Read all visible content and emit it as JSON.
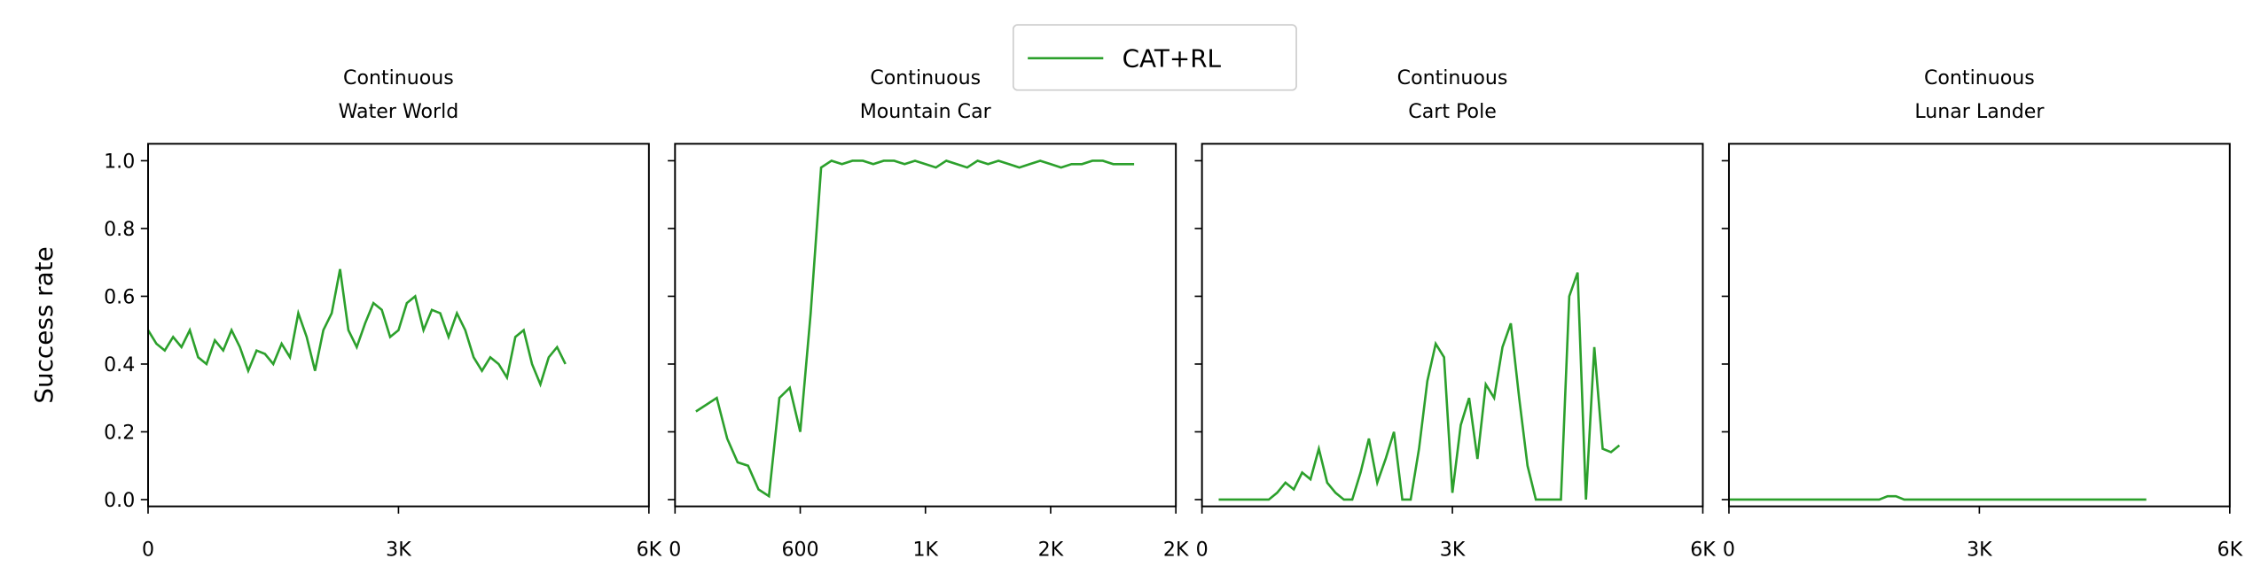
{
  "chart_data": [
    {
      "type": "line",
      "title": [
        "Continuous",
        "Water World"
      ],
      "ylabel": "Success rate",
      "x": [
        0,
        100,
        200,
        300,
        400,
        500,
        600,
        700,
        800,
        900,
        1000,
        1100,
        1200,
        1300,
        1400,
        1500,
        1600,
        1700,
        1800,
        1900,
        2000,
        2100,
        2200,
        2300,
        2400,
        2500,
        2600,
        2700,
        2800,
        2900,
        3000,
        3100,
        3200,
        3300,
        3400,
        3500,
        3600,
        3700,
        3800,
        3900,
        4000,
        4100,
        4200,
        4300,
        4400,
        4500,
        4600,
        4700,
        4800,
        4900,
        5000
      ],
      "series": [
        {
          "name": "CAT+RL",
          "color": "#2ca02c",
          "values": [
            0.5,
            0.46,
            0.44,
            0.48,
            0.45,
            0.5,
            0.42,
            0.4,
            0.47,
            0.44,
            0.5,
            0.45,
            0.38,
            0.44,
            0.43,
            0.4,
            0.46,
            0.42,
            0.55,
            0.48,
            0.38,
            0.5,
            0.55,
            0.68,
            0.5,
            0.45,
            0.52,
            0.58,
            0.56,
            0.48,
            0.5,
            0.58,
            0.6,
            0.5,
            0.56,
            0.55,
            0.48,
            0.55,
            0.5,
            0.42,
            0.38,
            0.42,
            0.4,
            0.36,
            0.48,
            0.5,
            0.4,
            0.34,
            0.42,
            0.45,
            0.4
          ]
        }
      ],
      "xlim": [
        0,
        6000
      ],
      "xticks": [
        0,
        {
          "value": 3000,
          "label": "3K"
        },
        {
          "value": 6000,
          "label": "6K"
        }
      ],
      "ylim": [
        -0.02,
        1.05
      ],
      "yticks": [
        {
          "value": 0,
          "label": "0.0"
        },
        {
          "value": 0.2,
          "label": "0.2"
        },
        {
          "value": 0.4,
          "label": "0.4"
        },
        {
          "value": 0.6,
          "label": "0.6"
        },
        {
          "value": 0.8,
          "label": "0.8"
        },
        {
          "value": 1,
          "label": "1.0"
        }
      ]
    },
    {
      "type": "line",
      "title": [
        "Continuous",
        "Mountain Car"
      ],
      "x": [
        100,
        150,
        200,
        250,
        300,
        350,
        400,
        450,
        500,
        550,
        600,
        650,
        700,
        750,
        800,
        850,
        900,
        950,
        1000,
        1050,
        1100,
        1150,
        1200,
        1250,
        1300,
        1350,
        1400,
        1450,
        1500,
        1550,
        1600,
        1650,
        1700,
        1750,
        1800,
        1850,
        1900,
        1950,
        2000,
        2050,
        2100,
        2150,
        2200
      ],
      "series": [
        {
          "color": "#2ca02c",
          "values": [
            0.26,
            0.28,
            0.3,
            0.18,
            0.11,
            0.1,
            0.03,
            0.01,
            0.3,
            0.33,
            0.2,
            0.55,
            0.98,
            1.0,
            0.99,
            1.0,
            1.0,
            0.99,
            1.0,
            1.0,
            0.99,
            1.0,
            0.99,
            0.98,
            1.0,
            0.99,
            0.98,
            1.0,
            0.99,
            1.0,
            0.99,
            0.98,
            0.99,
            1.0,
            0.99,
            0.98,
            0.99,
            0.99,
            1.0,
            1.0,
            0.99,
            0.99,
            0.99
          ]
        }
      ],
      "xlim": [
        0,
        2400
      ],
      "xticks": [
        0,
        600,
        {
          "value": 1200,
          "label": "1K"
        },
        {
          "value": 1800,
          "label": "2K"
        },
        {
          "value": 2400,
          "label": "2K"
        }
      ]
    },
    {
      "type": "line",
      "title": [
        "Continuous",
        "Cart Pole"
      ],
      "x": [
        200,
        300,
        400,
        500,
        600,
        700,
        800,
        900,
        1000,
        1100,
        1200,
        1300,
        1400,
        1500,
        1600,
        1700,
        1800,
        1900,
        2000,
        2100,
        2200,
        2300,
        2400,
        2500,
        2600,
        2700,
        2800,
        2900,
        3000,
        3100,
        3200,
        3300,
        3400,
        3500,
        3600,
        3700,
        3800,
        3900,
        4000,
        4100,
        4200,
        4300,
        4400,
        4500,
        4600,
        4700,
        4800,
        4900,
        5000
      ],
      "series": [
        {
          "color": "#2ca02c",
          "values": [
            0,
            0,
            0,
            0,
            0,
            0,
            0,
            0.02,
            0.05,
            0.03,
            0.08,
            0.06,
            0.15,
            0.05,
            0.02,
            0,
            0,
            0.08,
            0.18,
            0.05,
            0.12,
            0.2,
            0,
            0,
            0.15,
            0.35,
            0.46,
            0.42,
            0.02,
            0.22,
            0.3,
            0.12,
            0.34,
            0.3,
            0.45,
            0.52,
            0.3,
            0.1,
            0,
            0,
            0,
            0,
            0.6,
            0.67,
            0,
            0.45,
            0.15,
            0.14,
            0.16
          ]
        }
      ],
      "xlim": [
        0,
        6000
      ],
      "xticks": [
        0,
        {
          "value": 3000,
          "label": "3K"
        },
        {
          "value": 6000,
          "label": "6K"
        }
      ]
    },
    {
      "type": "line",
      "title": [
        "Continuous",
        "Lunar Lander"
      ],
      "x": [
        0,
        1800,
        1900,
        2000,
        2100,
        5000
      ],
      "series": [
        {
          "color": "#2ca02c",
          "values": [
            0,
            0,
            0.01,
            0.01,
            0,
            0
          ]
        }
      ],
      "xlim": [
        0,
        6000
      ],
      "xticks": [
        0,
        {
          "value": 3000,
          "label": "3K"
        },
        {
          "value": 6000,
          "label": "6K"
        }
      ]
    }
  ]
}
